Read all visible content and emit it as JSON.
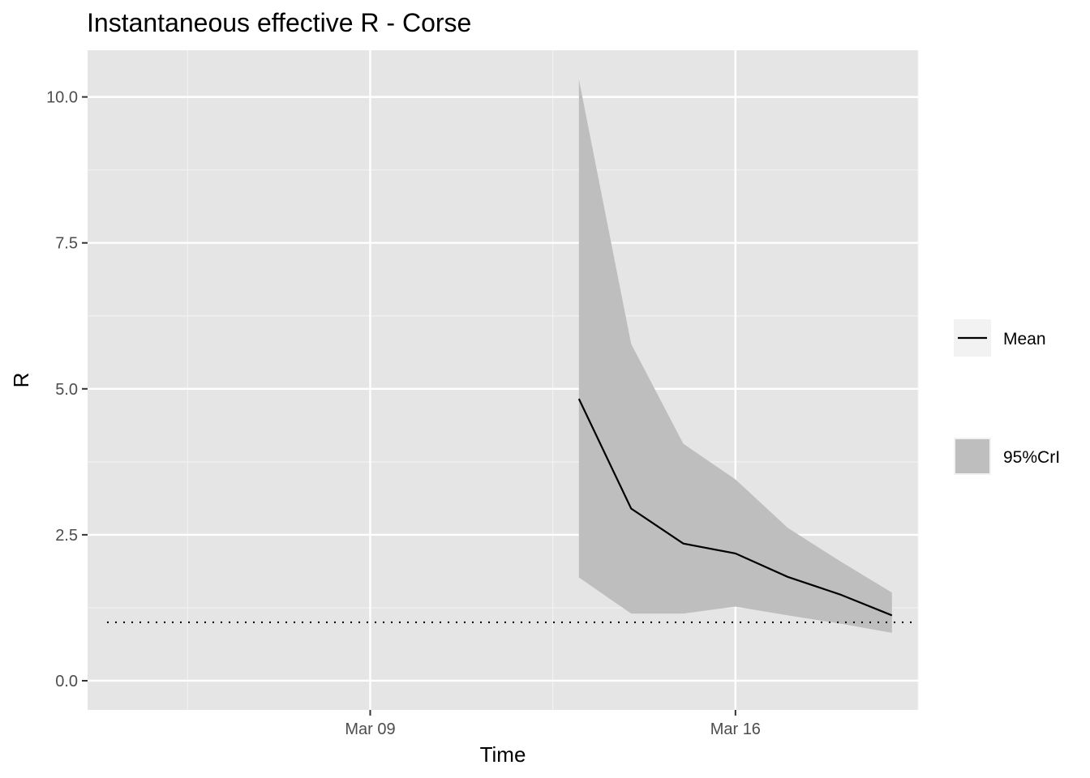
{
  "chart_data": {
    "type": "line",
    "title": "Instantaneous effective R -  Corse",
    "xlabel": "Time",
    "ylabel": "R",
    "x_ticks": [
      {
        "date": "2020-03-09",
        "label": "Mar 09"
      },
      {
        "date": "2020-03-16",
        "label": "Mar 16"
      }
    ],
    "y_ticks": [
      {
        "value": 0,
        "label": "0.0"
      },
      {
        "value": 2.5,
        "label": "2.5"
      },
      {
        "value": 5,
        "label": "5.0"
      },
      {
        "value": 7.5,
        "label": "7.5"
      },
      {
        "value": 10,
        "label": "10.0"
      }
    ],
    "xlim": [
      "2020-03-03T14:00",
      "2020-03-19T12:00"
    ],
    "ylim": [
      -0.5,
      10.8
    ],
    "grid": true,
    "background": "#e5e5e5",
    "x": [
      "2020-03-13",
      "2020-03-14",
      "2020-03-15",
      "2020-03-16",
      "2020-03-17",
      "2020-03-18",
      "2020-03-19"
    ],
    "series": [
      {
        "name": "Mean",
        "values": [
          4.83,
          2.95,
          2.35,
          2.18,
          1.78,
          1.48,
          1.12
        ],
        "color": "#000000"
      },
      {
        "name": "95%CrI",
        "lower": [
          1.77,
          1.15,
          1.15,
          1.27,
          1.12,
          0.98,
          0.82
        ],
        "upper": [
          10.3,
          5.77,
          4.06,
          3.45,
          2.62,
          2.05,
          1.51
        ],
        "color": "#bebebe"
      }
    ],
    "reference_line": {
      "y": 1,
      "style": "dotted"
    },
    "legend": {
      "position": "right",
      "items": [
        "Mean",
        "95%CrI"
      ]
    }
  }
}
